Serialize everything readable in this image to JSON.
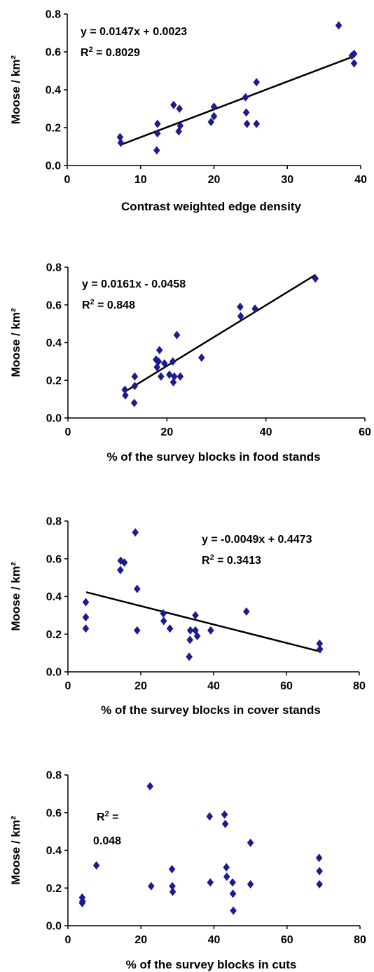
{
  "colors": {
    "marker": "#1c1c8f",
    "axis": "#000000",
    "trend": "#000000"
  },
  "chart_data": [
    {
      "type": "scatter",
      "xlabel": "Contrast weighted edge density",
      "ylabel": "Moose / km²",
      "xlim": [
        0,
        40
      ],
      "ylim": [
        0,
        0.8
      ],
      "xticks": [
        0,
        10,
        20,
        30,
        40
      ],
      "yticks": [
        0.0,
        0.2,
        0.4,
        0.6,
        0.8
      ],
      "equation": "y = 0.0147x + 0.0023",
      "r2_prefix": "R",
      "r2_sup": "2",
      "r2_value": " = 0.8029",
      "trendline": {
        "slope": 0.0147,
        "intercept": 0.0023,
        "x_range": [
          7.3,
          39
        ]
      },
      "points": [
        [
          7.2,
          0.15
        ],
        [
          7.3,
          0.12
        ],
        [
          12.2,
          0.08
        ],
        [
          12.3,
          0.17
        ],
        [
          12.3,
          0.22
        ],
        [
          14.5,
          0.32
        ],
        [
          15.3,
          0.3
        ],
        [
          15.2,
          0.18
        ],
        [
          15.4,
          0.21
        ],
        [
          19.6,
          0.23
        ],
        [
          20.0,
          0.31
        ],
        [
          20.0,
          0.26
        ],
        [
          24.3,
          0.36
        ],
        [
          24.4,
          0.28
        ],
        [
          24.5,
          0.22
        ],
        [
          25.8,
          0.44
        ],
        [
          25.8,
          0.22
        ],
        [
          37.0,
          0.74
        ],
        [
          38.8,
          0.58
        ],
        [
          39.1,
          0.59
        ],
        [
          39.1,
          0.54
        ]
      ]
    },
    {
      "type": "scatter",
      "xlabel": "% of the survey blocks in food stands",
      "ylabel": "Moose / km²",
      "xlim": [
        0,
        60
      ],
      "ylim": [
        0,
        0.8
      ],
      "xticks": [
        0,
        20,
        40,
        60
      ],
      "yticks": [
        0.0,
        0.2,
        0.4,
        0.6,
        0.8
      ],
      "equation": "y = 0.0161x - 0.0458",
      "r2_prefix": "R",
      "r2_sup": "2",
      "r2_value": " = 0.848",
      "trendline": {
        "slope": 0.0161,
        "intercept": -0.0458,
        "x_range": [
          11.5,
          50
        ]
      },
      "points": [
        [
          11.5,
          0.15
        ],
        [
          11.6,
          0.12
        ],
        [
          13.4,
          0.08
        ],
        [
          13.5,
          0.17
        ],
        [
          13.5,
          0.22
        ],
        [
          17.8,
          0.31
        ],
        [
          18.0,
          0.27
        ],
        [
          18.3,
          0.3
        ],
        [
          18.5,
          0.36
        ],
        [
          18.8,
          0.22
        ],
        [
          19.5,
          0.29
        ],
        [
          20.5,
          0.23
        ],
        [
          21.2,
          0.3
        ],
        [
          21.3,
          0.19
        ],
        [
          21.5,
          0.22
        ],
        [
          22.0,
          0.44
        ],
        [
          22.7,
          0.22
        ],
        [
          27.0,
          0.32
        ],
        [
          34.8,
          0.59
        ],
        [
          34.9,
          0.54
        ],
        [
          37.8,
          0.58
        ],
        [
          50.0,
          0.74
        ]
      ]
    },
    {
      "type": "scatter",
      "xlabel": "% of the survey blocks in cover stands",
      "ylabel": "Moose / km²",
      "xlim": [
        0,
        80
      ],
      "ylim": [
        0,
        0.8
      ],
      "xticks": [
        0,
        20,
        40,
        60,
        80
      ],
      "yticks": [
        0.0,
        0.2,
        0.4,
        0.6,
        0.8
      ],
      "equation": "y = -0.0049x + 0.4473",
      "r2_prefix": "R",
      "r2_sup": "2",
      "r2_value": " = 0.3413",
      "trendline": {
        "slope": -0.0049,
        "intercept": 0.4473,
        "x_range": [
          5,
          69
        ]
      },
      "points": [
        [
          4.9,
          0.37
        ],
        [
          4.9,
          0.29
        ],
        [
          4.9,
          0.23
        ],
        [
          14.5,
          0.59
        ],
        [
          14.4,
          0.54
        ],
        [
          15.5,
          0.58
        ],
        [
          18.5,
          0.74
        ],
        [
          19.0,
          0.44
        ],
        [
          19.0,
          0.22
        ],
        [
          26.2,
          0.31
        ],
        [
          26.3,
          0.27
        ],
        [
          28.0,
          0.23
        ],
        [
          33.3,
          0.08
        ],
        [
          33.5,
          0.17
        ],
        [
          33.6,
          0.22
        ],
        [
          35.0,
          0.3
        ],
        [
          35.0,
          0.22
        ],
        [
          35.5,
          0.19
        ],
        [
          39.2,
          0.22
        ],
        [
          49.0,
          0.32
        ],
        [
          69.1,
          0.15
        ],
        [
          69.2,
          0.12
        ]
      ]
    },
    {
      "type": "scatter",
      "xlabel": "% of the survey blocks in cuts",
      "ylabel": "Moose / km²",
      "xlim": [
        0,
        80
      ],
      "ylim": [
        0,
        0.8
      ],
      "xticks": [
        0,
        20,
        40,
        60,
        80
      ],
      "yticks": [
        0.0,
        0.2,
        0.4,
        0.6,
        0.8
      ],
      "equation": "",
      "r2_prefix": "R",
      "r2_sup": "2",
      "r2_value": " =",
      "r2_second_line": "0.048",
      "trendline": null,
      "points": [
        [
          3.9,
          0.15
        ],
        [
          3.9,
          0.12
        ],
        [
          4.0,
          0.13
        ],
        [
          7.8,
          0.32
        ],
        [
          22.5,
          0.74
        ],
        [
          22.8,
          0.21
        ],
        [
          28.5,
          0.3
        ],
        [
          28.6,
          0.21
        ],
        [
          28.7,
          0.18
        ],
        [
          38.8,
          0.58
        ],
        [
          39.0,
          0.23
        ],
        [
          42.9,
          0.59
        ],
        [
          43.1,
          0.54
        ],
        [
          43.4,
          0.31
        ],
        [
          43.5,
          0.26
        ],
        [
          45.1,
          0.23
        ],
        [
          45.2,
          0.17
        ],
        [
          45.3,
          0.08
        ],
        [
          50.0,
          0.44
        ],
        [
          50.0,
          0.22
        ],
        [
          68.8,
          0.36
        ],
        [
          68.9,
          0.29
        ],
        [
          68.9,
          0.22
        ]
      ]
    }
  ]
}
